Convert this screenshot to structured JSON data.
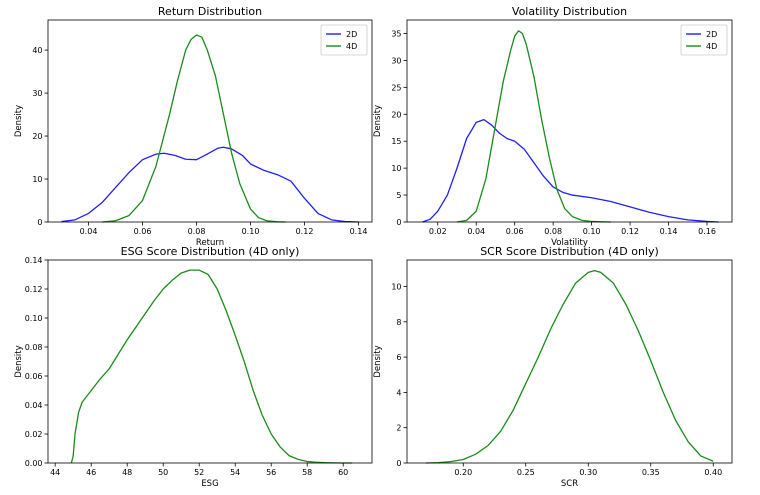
{
  "chart_data": [
    {
      "type": "line",
      "title": "Return Distribution",
      "xlabel": "Return",
      "ylabel": "Density",
      "xlim": [
        0.025,
        0.145
      ],
      "ylim": [
        0,
        47
      ],
      "xticks": [
        0.04,
        0.06,
        0.08,
        0.1,
        0.12,
        0.14
      ],
      "xtick_labels": [
        "0.04",
        "0.06",
        "0.08",
        "0.10",
        "0.12",
        "0.14"
      ],
      "yticks": [
        0,
        10,
        20,
        30,
        40
      ],
      "ytick_labels": [
        "0",
        "10",
        "20",
        "30",
        "40"
      ],
      "legend_position": "top-right",
      "series": [
        {
          "name": "2D",
          "color": "#1f1fff",
          "x": [
            0.03,
            0.035,
            0.04,
            0.045,
            0.05,
            0.055,
            0.06,
            0.065,
            0.068,
            0.072,
            0.076,
            0.08,
            0.084,
            0.088,
            0.09,
            0.093,
            0.097,
            0.1,
            0.105,
            0.11,
            0.115,
            0.12,
            0.125,
            0.13,
            0.135,
            0.14
          ],
          "y": [
            0.1,
            0.5,
            2.0,
            4.5,
            8.0,
            11.5,
            14.5,
            15.8,
            16.0,
            15.5,
            14.6,
            14.5,
            15.8,
            17.2,
            17.4,
            17.0,
            15.5,
            13.5,
            12.0,
            11.0,
            9.5,
            5.5,
            2.0,
            0.5,
            0.1,
            0.0
          ]
        },
        {
          "name": "4D",
          "color": "#1a8c1a",
          "x": [
            0.045,
            0.05,
            0.055,
            0.06,
            0.065,
            0.07,
            0.073,
            0.076,
            0.078,
            0.08,
            0.082,
            0.084,
            0.087,
            0.09,
            0.093,
            0.096,
            0.1,
            0.103,
            0.106,
            0.11,
            0.113
          ],
          "y": [
            0.0,
            0.3,
            1.5,
            5.0,
            13.0,
            25.0,
            33.0,
            40.0,
            42.5,
            43.5,
            43.0,
            40.0,
            34.0,
            25.0,
            16.0,
            9.0,
            3.0,
            1.0,
            0.3,
            0.05,
            0.0
          ]
        }
      ]
    },
    {
      "type": "line",
      "title": "Volatility Distribution",
      "xlabel": "Volatility",
      "ylabel": "Density",
      "xlim": [
        0.004,
        0.173
      ],
      "ylim": [
        0,
        37.5
      ],
      "xticks": [
        0.02,
        0.04,
        0.06,
        0.08,
        0.1,
        0.12,
        0.14,
        0.16
      ],
      "xtick_labels": [
        "0.02",
        "0.04",
        "0.06",
        "0.08",
        "0.10",
        "0.12",
        "0.14",
        "0.16"
      ],
      "yticks": [
        0,
        5,
        10,
        15,
        20,
        25,
        30,
        35
      ],
      "ytick_labels": [
        "0",
        "5",
        "10",
        "15",
        "20",
        "25",
        "30",
        "35"
      ],
      "legend_position": "top-right",
      "series": [
        {
          "name": "2D",
          "color": "#1f1fff",
          "x": [
            0.012,
            0.016,
            0.02,
            0.025,
            0.03,
            0.035,
            0.04,
            0.044,
            0.048,
            0.052,
            0.056,
            0.06,
            0.065,
            0.07,
            0.075,
            0.08,
            0.085,
            0.09,
            0.1,
            0.11,
            0.12,
            0.13,
            0.14,
            0.15,
            0.16,
            0.166
          ],
          "y": [
            0.0,
            0.5,
            2.0,
            5.0,
            10.0,
            15.5,
            18.5,
            19.0,
            18.0,
            16.5,
            15.5,
            15.0,
            13.5,
            11.0,
            8.5,
            6.5,
            5.5,
            5.0,
            4.5,
            3.8,
            2.8,
            1.8,
            1.0,
            0.4,
            0.1,
            0.0
          ]
        },
        {
          "name": "4D",
          "color": "#1a8c1a",
          "x": [
            0.03,
            0.035,
            0.04,
            0.045,
            0.05,
            0.054,
            0.058,
            0.06,
            0.062,
            0.064,
            0.066,
            0.07,
            0.074,
            0.078,
            0.082,
            0.086,
            0.09,
            0.095,
            0.1,
            0.105,
            0.11
          ],
          "y": [
            0.0,
            0.3,
            2.0,
            8.0,
            18.0,
            26.0,
            32.0,
            34.5,
            35.5,
            35.0,
            33.0,
            27.0,
            19.0,
            12.0,
            6.0,
            2.5,
            1.0,
            0.3,
            0.1,
            0.05,
            0.0
          ]
        }
      ]
    },
    {
      "type": "line",
      "title": "ESG Score Distribution (4D only)",
      "xlabel": "ESG",
      "ylabel": "Density",
      "xlim": [
        43.6,
        61.6
      ],
      "ylim": [
        0,
        0.14
      ],
      "xticks": [
        44,
        46,
        48,
        50,
        52,
        54,
        56,
        58,
        60
      ],
      "xtick_labels": [
        "44",
        "46",
        "48",
        "50",
        "52",
        "54",
        "56",
        "58",
        "60"
      ],
      "yticks": [
        0.0,
        0.02,
        0.04,
        0.06,
        0.08,
        0.1,
        0.12,
        0.14
      ],
      "ytick_labels": [
        "0.00",
        "0.02",
        "0.04",
        "0.06",
        "0.08",
        "0.10",
        "0.12",
        "0.14"
      ],
      "series": [
        {
          "name": "4D",
          "color": "#1a8c1a",
          "x": [
            44.9,
            45.0,
            45.1,
            45.3,
            45.5,
            46.0,
            46.5,
            47.0,
            47.5,
            48.0,
            48.5,
            49.0,
            49.5,
            50.0,
            50.5,
            51.0,
            51.5,
            52.0,
            52.5,
            53.0,
            53.5,
            54.0,
            54.5,
            55.0,
            55.5,
            56.0,
            56.5,
            57.0,
            57.5,
            58.0,
            58.5,
            59.0,
            59.5,
            60.0,
            60.5
          ],
          "y": [
            0.0,
            0.005,
            0.02,
            0.035,
            0.042,
            0.05,
            0.058,
            0.065,
            0.075,
            0.085,
            0.094,
            0.103,
            0.112,
            0.12,
            0.126,
            0.131,
            0.133,
            0.133,
            0.13,
            0.12,
            0.105,
            0.088,
            0.07,
            0.05,
            0.033,
            0.02,
            0.011,
            0.005,
            0.0025,
            0.001,
            0.0005,
            0.0002,
            0.0001,
            0.0,
            0.0
          ]
        }
      ]
    },
    {
      "type": "line",
      "title": "SCR Score Distribution (4D only)",
      "xlabel": "SCR",
      "ylabel": "Density",
      "xlim": [
        0.155,
        0.415
      ],
      "ylim": [
        0,
        11.5
      ],
      "xticks": [
        0.2,
        0.25,
        0.3,
        0.35,
        0.4
      ],
      "xtick_labels": [
        "0.20",
        "0.25",
        "0.30",
        "0.35",
        "0.40"
      ],
      "yticks": [
        0,
        2,
        4,
        6,
        8,
        10
      ],
      "ytick_labels": [
        "0",
        "2",
        "4",
        "6",
        "8",
        "10"
      ],
      "series": [
        {
          "name": "4D",
          "color": "#1a8c1a",
          "x": [
            0.17,
            0.18,
            0.19,
            0.2,
            0.21,
            0.22,
            0.23,
            0.24,
            0.25,
            0.26,
            0.27,
            0.28,
            0.29,
            0.3,
            0.305,
            0.31,
            0.32,
            0.33,
            0.34,
            0.35,
            0.36,
            0.37,
            0.38,
            0.39,
            0.4
          ],
          "y": [
            0.0,
            0.02,
            0.08,
            0.2,
            0.5,
            1.0,
            1.8,
            3.0,
            4.5,
            6.0,
            7.6,
            9.0,
            10.2,
            10.8,
            10.9,
            10.8,
            10.2,
            9.0,
            7.5,
            5.8,
            4.0,
            2.4,
            1.2,
            0.4,
            0.1
          ]
        }
      ]
    }
  ]
}
